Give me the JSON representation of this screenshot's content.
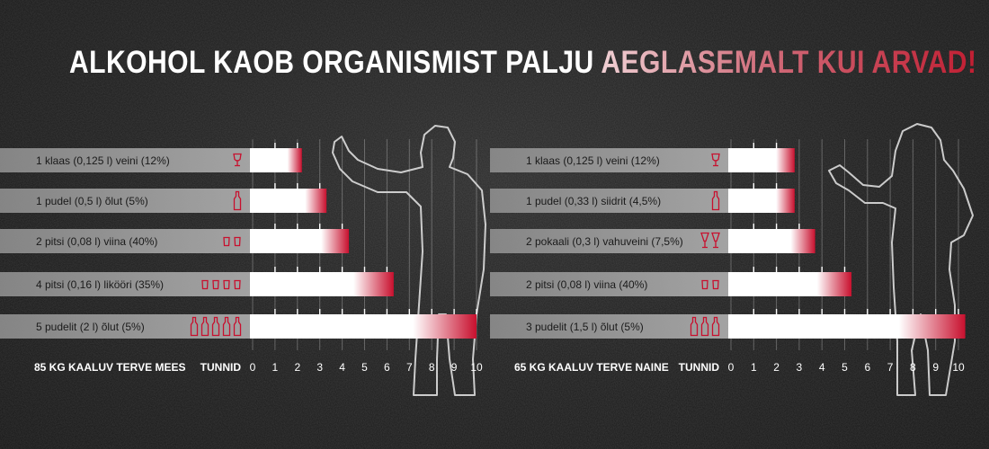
{
  "title": {
    "white_part": "ALKOHOL KAOB ORGANISMIST PALJU",
    "red_part": "AEGLASEMALT KUI ARVAD!"
  },
  "colors": {
    "bar_fill": "#ffffff",
    "bar_end": "#c8102e",
    "row_band": "#9a9a9a",
    "icon": "#c8102e"
  },
  "chart_data": [
    {
      "type": "bar",
      "orientation": "horizontal",
      "group_label": "85 KG KAALUV TERVE MEES",
      "xlabel": "TUNNID",
      "xlim": [
        0,
        10
      ],
      "ticks": [
        0,
        1,
        2,
        3,
        4,
        5,
        6,
        7,
        8,
        9,
        10
      ],
      "categories": [
        "1 klaas (0,125 l) veini (12%)",
        "1 pudel (0,5 l) õlut (5%)",
        "2 pitsi (0,08 l) viina (40%)",
        "4 pitsi (0,16 l) likööri (35%)",
        "5 pudelit (2 l) õlut (5%)"
      ],
      "icons": [
        {
          "name": "wine-glass-icon",
          "count": 1
        },
        {
          "name": "bottle-icon",
          "count": 1
        },
        {
          "name": "shot-glass-icon",
          "count": 2
        },
        {
          "name": "shot-glass-icon",
          "count": 4
        },
        {
          "name": "bottle-icon",
          "count": 5
        }
      ],
      "values": [
        2.2,
        3.3,
        4.3,
        6.3,
        10.0
      ]
    },
    {
      "type": "bar",
      "orientation": "horizontal",
      "group_label": "65 KG KAALUV TERVE NAINE",
      "xlabel": "TUNNID",
      "xlim": [
        0,
        10
      ],
      "ticks": [
        0,
        1,
        2,
        3,
        4,
        5,
        6,
        7,
        8,
        9,
        10
      ],
      "categories": [
        "1 klaas (0,125 l) veini (12%)",
        "1 pudel (0,33 l) siidrit (4,5%)",
        "2 pokaali (0,3 l) vahuveini (7,5%)",
        "2 pitsi (0,08 l) viina (40%)",
        "3 pudelit (1,5 l) õlut (5%)"
      ],
      "icons": [
        {
          "name": "wine-glass-icon",
          "count": 1
        },
        {
          "name": "bottle-icon",
          "count": 1
        },
        {
          "name": "champagne-glass-icon",
          "count": 2
        },
        {
          "name": "shot-glass-icon",
          "count": 2
        },
        {
          "name": "bottle-icon",
          "count": 3
        }
      ],
      "values": [
        2.8,
        2.8,
        3.7,
        5.3,
        10.3
      ]
    }
  ]
}
